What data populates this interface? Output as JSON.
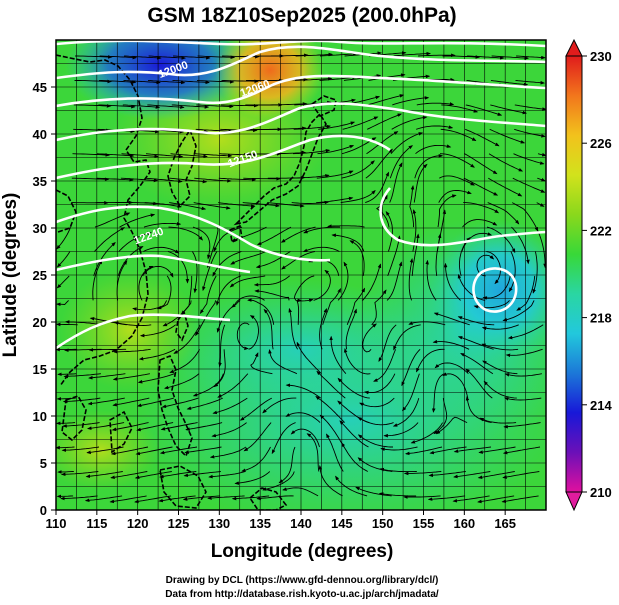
{
  "figure": {
    "title": "GSM 18Z10Sep2025 (200.0hPa)",
    "xlabel": "Longitude (degrees)",
    "ylabel": "Latitude  (degrees)",
    "credit_line1": "Drawing by DCL (https://www.gfd-dennou.org/library/dcl/)",
    "credit_line2": "Data from http://database.rish.kyoto-u.ac.jp/arch/jmadata/"
  },
  "map": {
    "lon_range": [
      110,
      170
    ],
    "lat_range": [
      0,
      50
    ],
    "lon_ticks": [
      "110",
      "115",
      "120",
      "125",
      "130",
      "135",
      "140",
      "145",
      "150",
      "155",
      "160",
      "165"
    ],
    "lat_ticks": [
      "0",
      "5",
      "10",
      "15",
      "20",
      "25",
      "30",
      "35",
      "40",
      "45"
    ],
    "contour_labels": [
      {
        "text": "12000",
        "lon": 124.5,
        "lat": 46.5
      },
      {
        "text": "12060",
        "lon": 134.5,
        "lat": 44.5
      },
      {
        "text": "12150",
        "lon": 133.0,
        "lat": 37.0
      },
      {
        "text": "12240",
        "lon": 121.5,
        "lat": 28.8
      }
    ],
    "colorbar": {
      "min": 210,
      "max": 230,
      "tick_labels": [
        "230",
        "226",
        "222",
        "218",
        "214",
        "210"
      ],
      "tick_values": [
        230,
        226,
        222,
        218,
        214,
        210
      ],
      "colors": [
        "#e0109e",
        "#6b10b8",
        "#1818d8",
        "#1c78d8",
        "#22c8dc",
        "#2ad6a2",
        "#38d838",
        "#8ad81c",
        "#d2e21c",
        "#f2c21c",
        "#f2761c",
        "#e01c1c"
      ]
    }
  }
}
